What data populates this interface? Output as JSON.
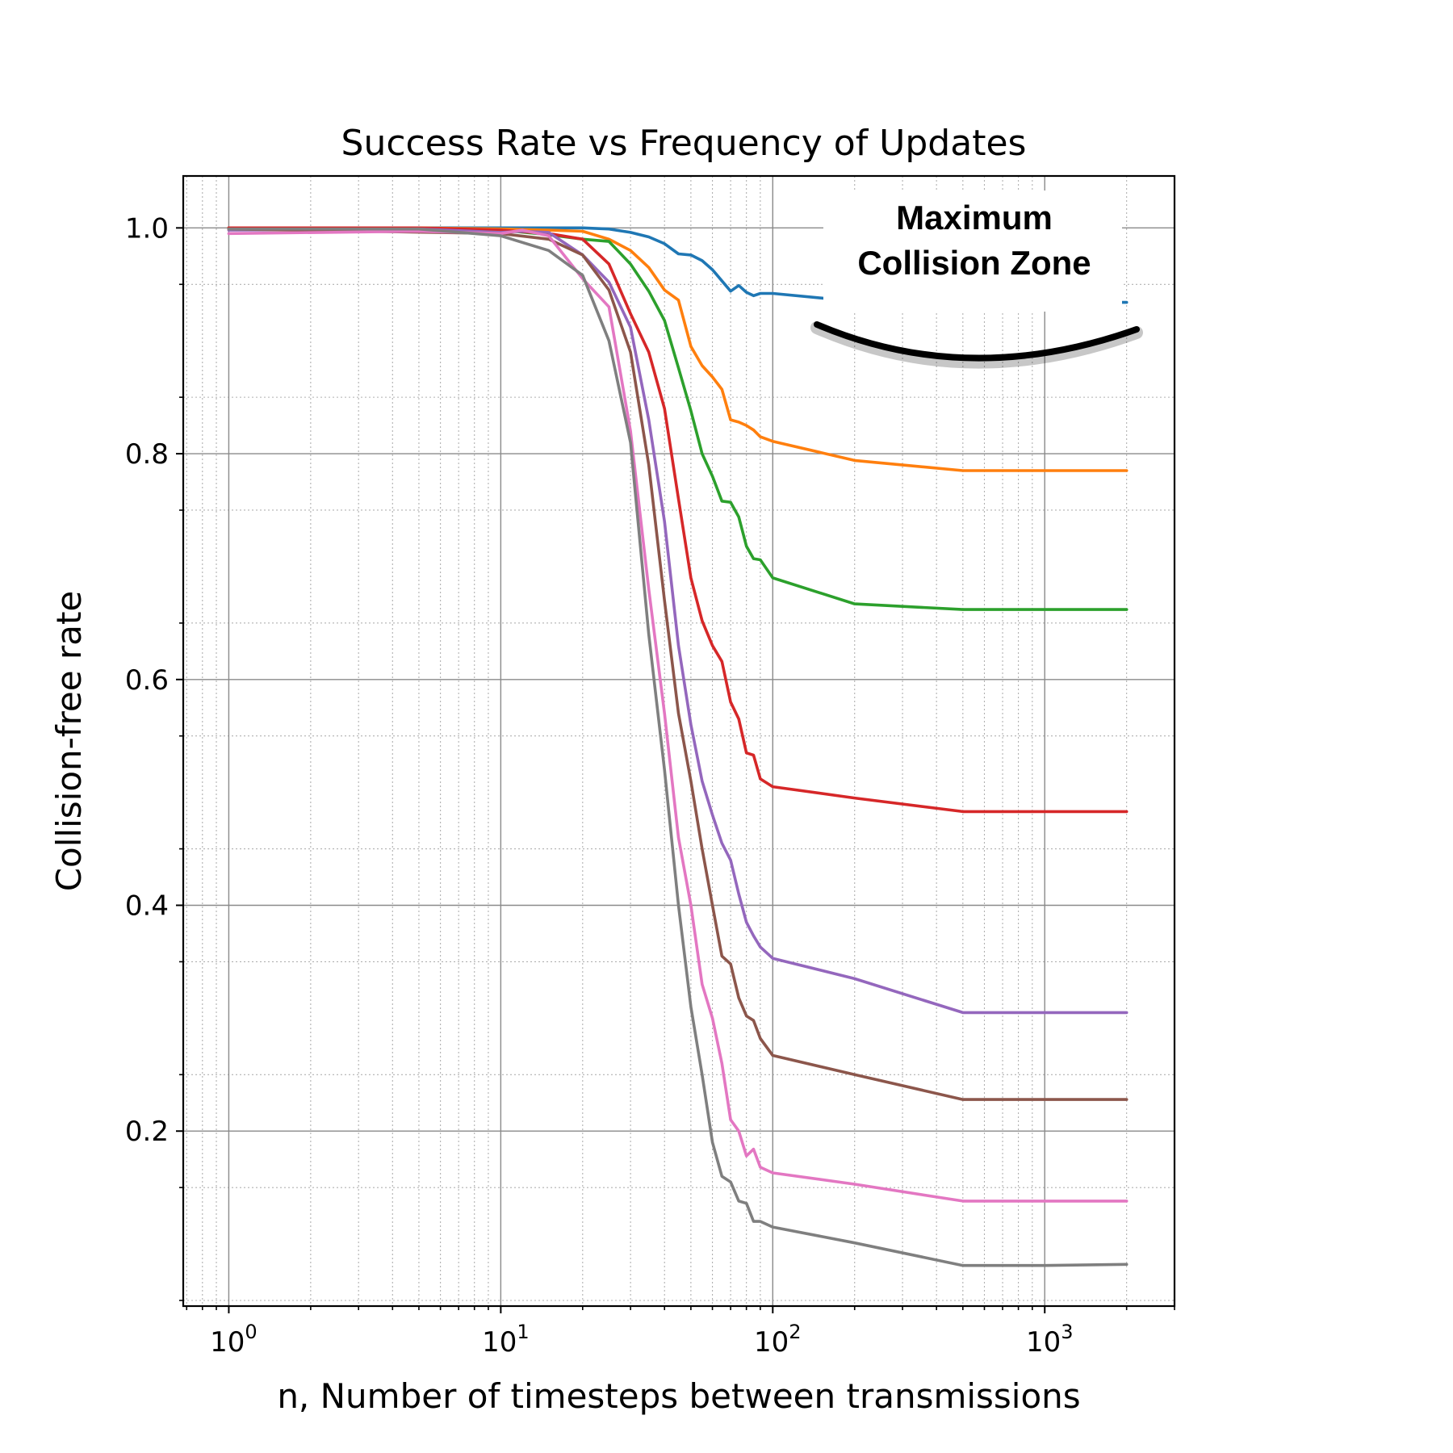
{
  "chart_data": {
    "type": "line",
    "title": "Success Rate vs Frequency of Updates",
    "xlabel": "n, Number of timesteps between transmissions",
    "ylabel": "Collision-free rate",
    "xscale": "log",
    "xlim": [
      0.68,
      3000
    ],
    "ylim": [
      0.045,
      1.046
    ],
    "x_ticks": [
      {
        "base": "10",
        "exp": "0",
        "value": 1
      },
      {
        "base": "10",
        "exp": "1",
        "value": 10
      },
      {
        "base": "10",
        "exp": "2",
        "value": 100
      },
      {
        "base": "10",
        "exp": "3",
        "value": 1000
      }
    ],
    "y_ticks": [
      {
        "label": "0.2",
        "value": 0.2
      },
      {
        "label": "0.4",
        "value": 0.4
      },
      {
        "label": "0.6",
        "value": 0.6
      },
      {
        "label": "0.8",
        "value": 0.8
      },
      {
        "label": "1.0",
        "value": 1.0
      }
    ],
    "grid": true,
    "annotation": {
      "lines": [
        "Maximum",
        "Collision Zone"
      ]
    },
    "series": [
      {
        "color": "#1f77b4",
        "x": [
          1,
          5,
          10,
          20,
          25,
          30,
          35,
          40,
          45,
          50,
          55,
          60,
          70,
          75,
          80,
          85,
          90,
          100,
          200,
          500,
          1000,
          2000
        ],
        "y": [
          1.0,
          1.0,
          1.0,
          1.0,
          0.999,
          0.996,
          0.992,
          0.986,
          0.977,
          0.976,
          0.971,
          0.963,
          0.944,
          0.949,
          0.943,
          0.94,
          0.942,
          0.942,
          0.935,
          0.934,
          0.934,
          0.934
        ]
      },
      {
        "color": "#ff7f0e",
        "x": [
          1,
          5,
          10,
          15,
          20,
          25,
          30,
          35,
          40,
          45,
          50,
          55,
          60,
          65,
          70,
          75,
          80,
          85,
          90,
          100,
          200,
          500,
          1000,
          2000
        ],
        "y": [
          1.0,
          1.0,
          0.999,
          0.998,
          0.997,
          0.99,
          0.98,
          0.965,
          0.945,
          0.936,
          0.895,
          0.878,
          0.868,
          0.857,
          0.83,
          0.828,
          0.825,
          0.821,
          0.815,
          0.811,
          0.794,
          0.785,
          0.785,
          0.785
        ]
      },
      {
        "color": "#2ca02c",
        "x": [
          1,
          10,
          15,
          20,
          25,
          30,
          35,
          40,
          45,
          50,
          55,
          60,
          65,
          70,
          75,
          80,
          85,
          90,
          100,
          200,
          500,
          1000,
          2000
        ],
        "y": [
          0.999,
          0.998,
          0.994,
          0.99,
          0.988,
          0.968,
          0.944,
          0.918,
          0.876,
          0.838,
          0.8,
          0.78,
          0.758,
          0.757,
          0.744,
          0.718,
          0.707,
          0.706,
          0.69,
          0.667,
          0.662,
          0.662,
          0.662
        ]
      },
      {
        "color": "#d62728",
        "x": [
          1,
          5,
          10,
          15,
          20,
          25,
          30,
          35,
          40,
          45,
          50,
          55,
          60,
          65,
          70,
          75,
          80,
          85,
          90,
          100,
          200,
          500,
          1000,
          2000
        ],
        "y": [
          1.0,
          1.0,
          0.998,
          0.995,
          0.99,
          0.968,
          0.924,
          0.89,
          0.84,
          0.76,
          0.69,
          0.652,
          0.63,
          0.616,
          0.58,
          0.565,
          0.535,
          0.533,
          0.512,
          0.505,
          0.495,
          0.483,
          0.483,
          0.483
        ]
      },
      {
        "color": "#9467bd",
        "x": [
          1,
          5,
          10,
          12,
          15,
          20,
          25,
          30,
          35,
          40,
          45,
          50,
          55,
          60,
          65,
          70,
          75,
          80,
          85,
          90,
          100,
          200,
          500,
          1000,
          2000
        ],
        "y": [
          0.998,
          0.999,
          0.996,
          0.997,
          0.996,
          0.976,
          0.952,
          0.912,
          0.83,
          0.74,
          0.63,
          0.56,
          0.51,
          0.48,
          0.455,
          0.44,
          0.41,
          0.385,
          0.373,
          0.363,
          0.353,
          0.335,
          0.305,
          0.305,
          0.305
        ]
      },
      {
        "color": "#8c564b",
        "x": [
          1,
          10,
          15,
          20,
          25,
          30,
          35,
          40,
          45,
          50,
          55,
          60,
          65,
          70,
          75,
          80,
          85,
          90,
          100,
          200,
          500,
          1000,
          2000
        ],
        "y": [
          0.999,
          0.995,
          0.99,
          0.976,
          0.945,
          0.89,
          0.79,
          0.67,
          0.57,
          0.51,
          0.45,
          0.4,
          0.355,
          0.348,
          0.318,
          0.302,
          0.298,
          0.282,
          0.267,
          0.25,
          0.228,
          0.228,
          0.228
        ]
      },
      {
        "color": "#e377c2",
        "x": [
          1,
          5,
          10,
          12,
          15,
          20,
          25,
          30,
          35,
          40,
          45,
          50,
          55,
          60,
          65,
          70,
          75,
          80,
          85,
          90,
          100,
          200,
          500,
          1000,
          2000
        ],
        "y": [
          0.995,
          0.997,
          0.995,
          0.998,
          0.993,
          0.955,
          0.93,
          0.82,
          0.68,
          0.57,
          0.46,
          0.4,
          0.33,
          0.3,
          0.26,
          0.21,
          0.2,
          0.178,
          0.184,
          0.168,
          0.163,
          0.153,
          0.138,
          0.138,
          0.138
        ]
      },
      {
        "color": "#7f7f7f",
        "x": [
          1,
          5,
          10,
          15,
          20,
          25,
          30,
          35,
          40,
          45,
          50,
          55,
          60,
          65,
          70,
          75,
          80,
          85,
          90,
          100,
          200,
          500,
          1000,
          2000
        ],
        "y": [
          0.999,
          0.999,
          0.993,
          0.98,
          0.958,
          0.9,
          0.81,
          0.64,
          0.52,
          0.4,
          0.31,
          0.25,
          0.19,
          0.16,
          0.155,
          0.138,
          0.136,
          0.12,
          0.12,
          0.115,
          0.101,
          0.081,
          0.081,
          0.082
        ]
      }
    ]
  }
}
